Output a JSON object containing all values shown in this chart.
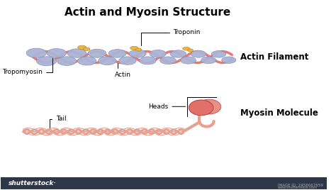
{
  "title": "Actin and Myosin Structure",
  "title_fontsize": 11,
  "title_fontweight": "bold",
  "bg_color": "#ffffff",
  "actin_label": "Actin Filament",
  "myosin_label": "Myosin Molecule",
  "troponin_label": "Troponin",
  "tropomyosin_label": "Tropomyosin",
  "actin_sub_label": "Actin",
  "tail_label": "Tail",
  "heads_label": "Heads",
  "actin_ball_color": "#aab4d4",
  "actin_ball_edge": "#8890b8",
  "tropomyosin_color": "#e87870",
  "troponin_color": "#e8b840",
  "myosin_tail_color": "#e8a090",
  "myosin_head_color": "#e07068",
  "myosin_head_light": "#e89088",
  "label_fontsize": 6.5,
  "side_label_fontsize": 8.5,
  "footer_color": "#2d3748"
}
